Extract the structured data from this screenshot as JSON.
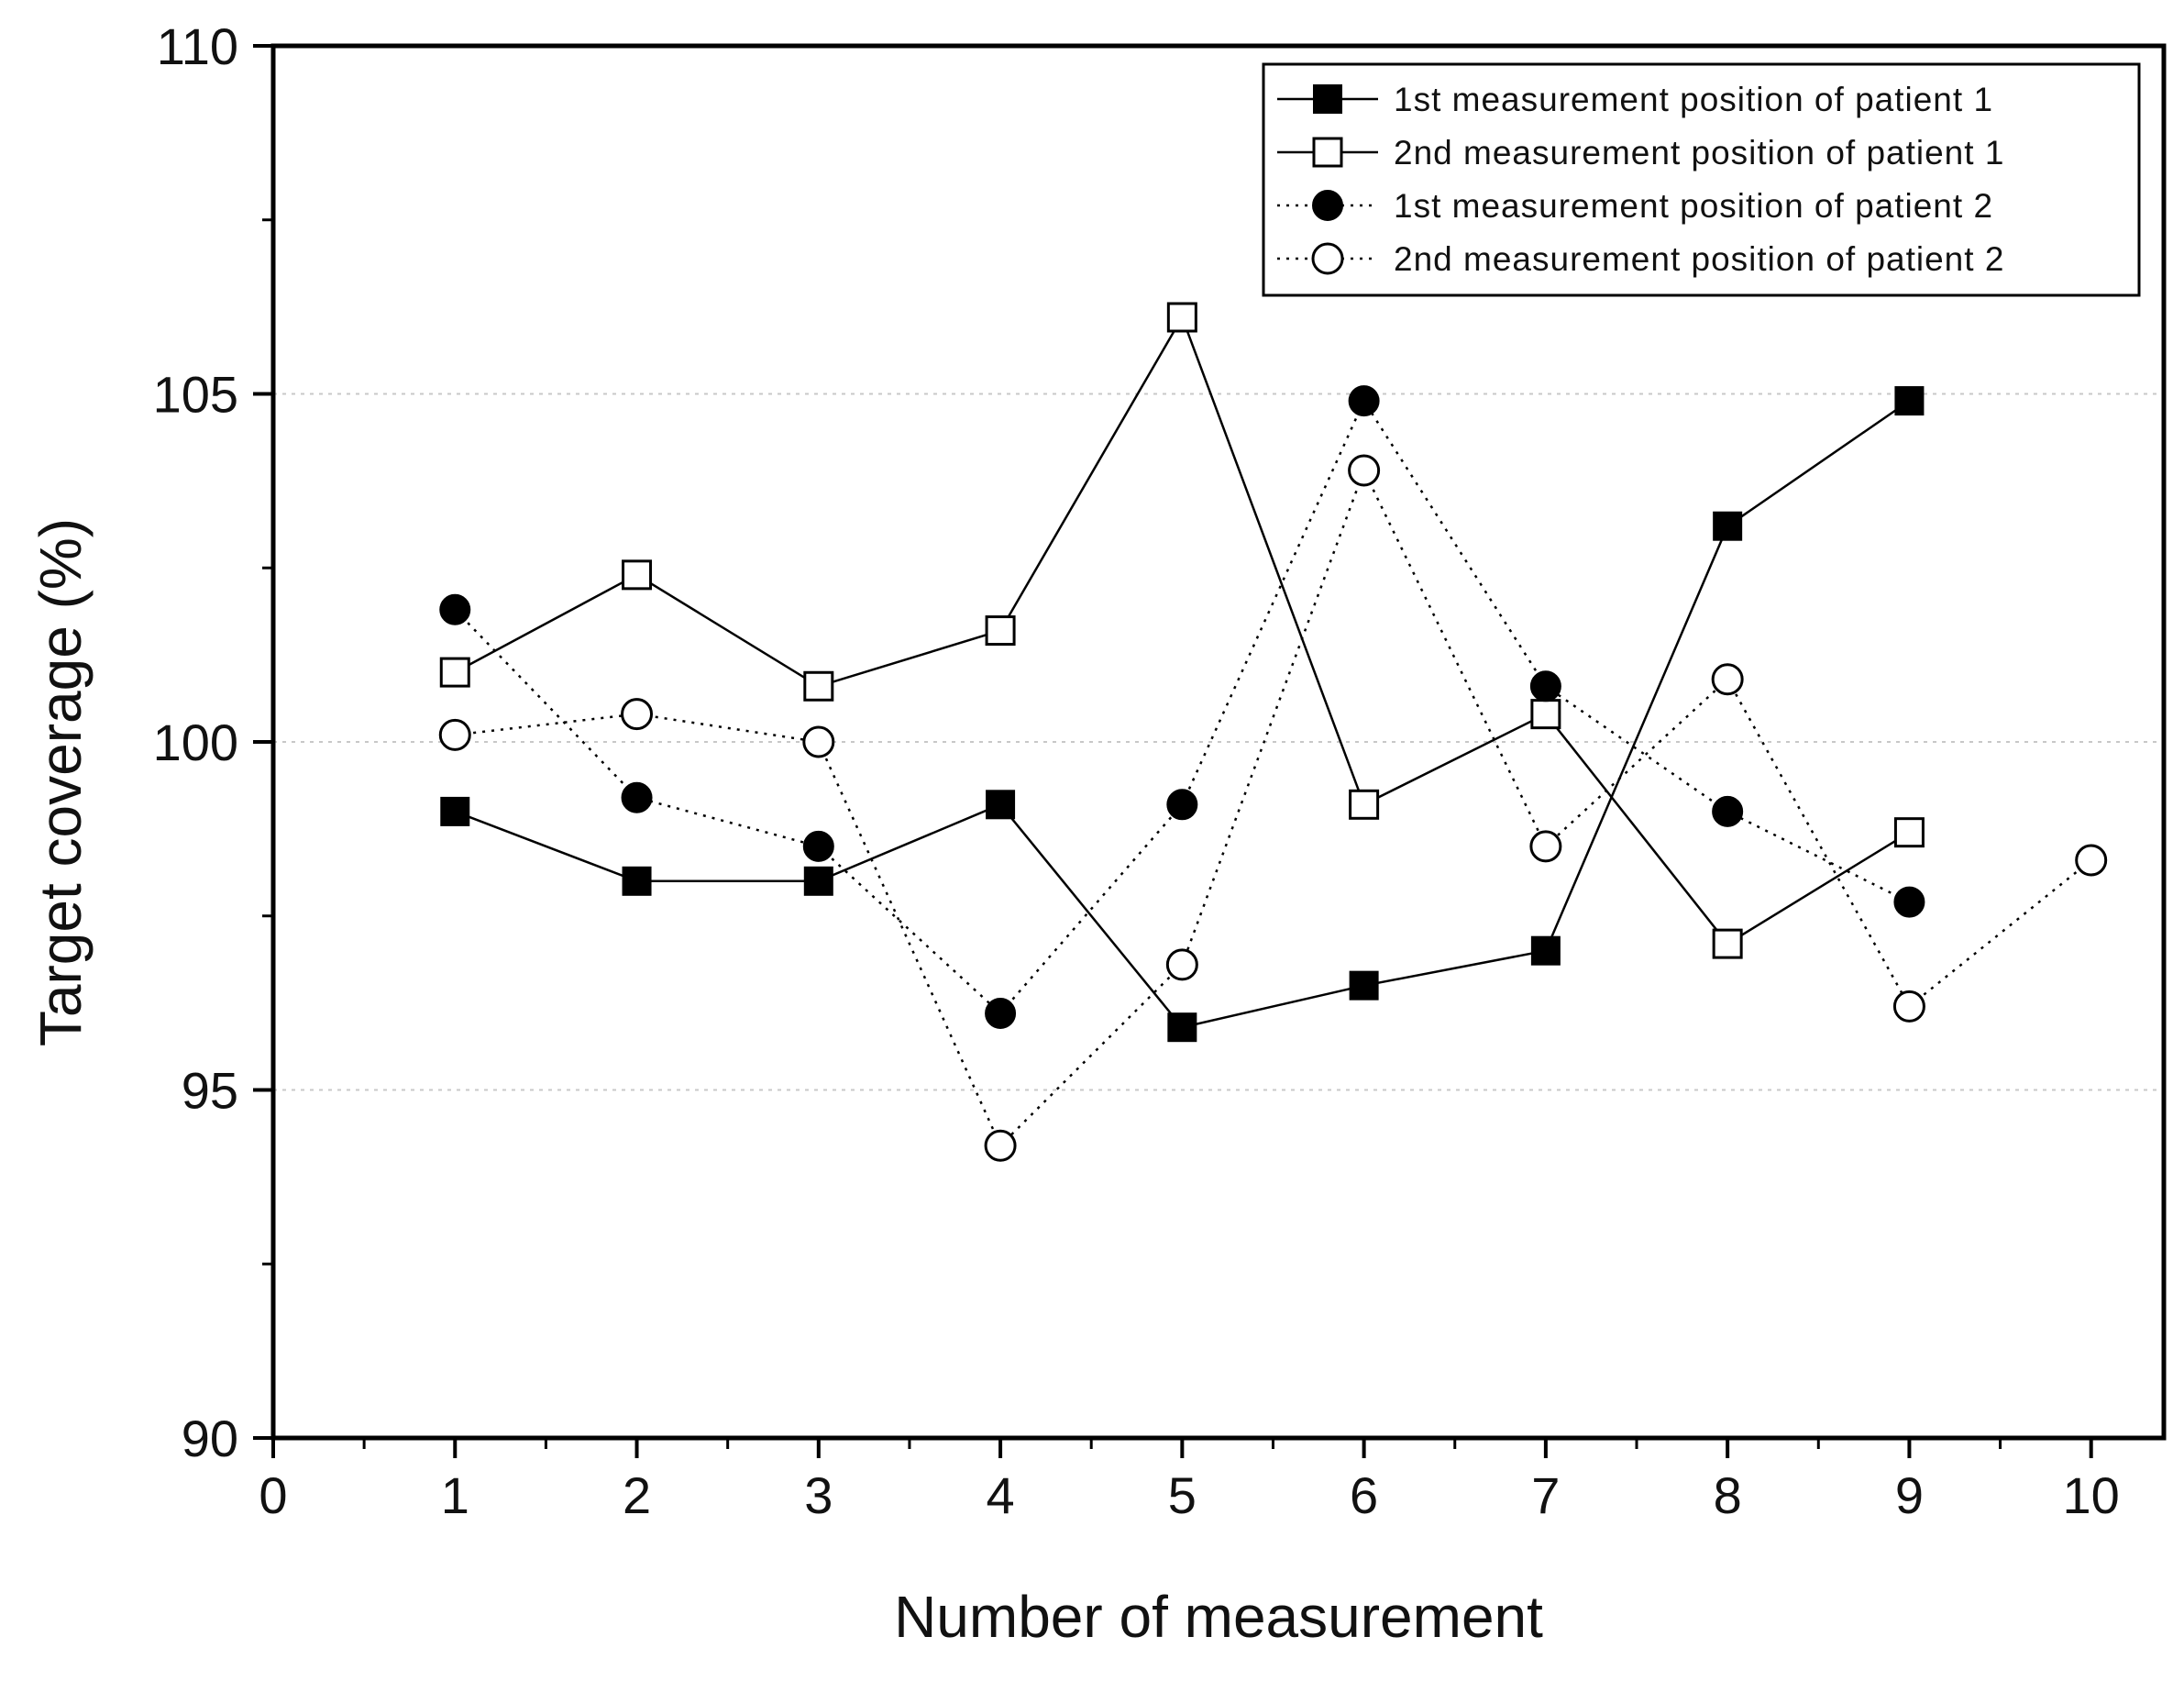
{
  "chart_data": {
    "type": "line",
    "xlabel": "Number of measurement",
    "ylabel": "Target coverage (%)",
    "xlim": [
      0,
      10.4
    ],
    "ylim": [
      90,
      110
    ],
    "xticks": [
      0,
      1,
      2,
      3,
      4,
      5,
      6,
      7,
      8,
      9,
      10
    ],
    "xtick_labels": [
      "0",
      "1",
      "2",
      "3",
      "4",
      "5",
      "6",
      "7",
      "8",
      "9",
      "10"
    ],
    "yticks": [
      90,
      95,
      100,
      105,
      110
    ],
    "ytick_labels": [
      "90",
      "95",
      "100",
      "105",
      "110"
    ],
    "grid": "horizontal dotted at 95, 100, 105",
    "legend_position": "top-right",
    "series": [
      {
        "name": "1st measurement position of patient 1",
        "marker": "filled-square",
        "line": "solid",
        "x": [
          1,
          2,
          3,
          4,
          5,
          6,
          7,
          8,
          9
        ],
        "y": [
          99.0,
          98.0,
          98.0,
          99.1,
          95.9,
          96.5,
          97.0,
          103.1,
          104.9
        ]
      },
      {
        "name": "2nd measurement position of patient 1",
        "marker": "open-square",
        "line": "solid",
        "x": [
          1,
          2,
          3,
          4,
          5,
          6,
          7,
          8,
          9
        ],
        "y": [
          101.0,
          102.4,
          100.8,
          101.6,
          106.1,
          99.1,
          100.4,
          97.1,
          98.7
        ]
      },
      {
        "name": "1st measurement position of patient 2",
        "marker": "filled-circle",
        "line": "dotted",
        "x": [
          1,
          2,
          3,
          4,
          5,
          6,
          7,
          8,
          9
        ],
        "y": [
          101.9,
          99.2,
          98.5,
          96.1,
          99.1,
          104.9,
          100.8,
          99.0,
          97.7
        ]
      },
      {
        "name": "2nd measurement position of patient 2",
        "marker": "open-circle",
        "line": "dotted",
        "x": [
          1,
          2,
          3,
          4,
          5,
          6,
          7,
          8,
          9,
          10
        ],
        "y": [
          100.1,
          100.4,
          100.0,
          94.2,
          96.8,
          103.9,
          98.5,
          100.9,
          96.2,
          98.3
        ]
      }
    ]
  }
}
